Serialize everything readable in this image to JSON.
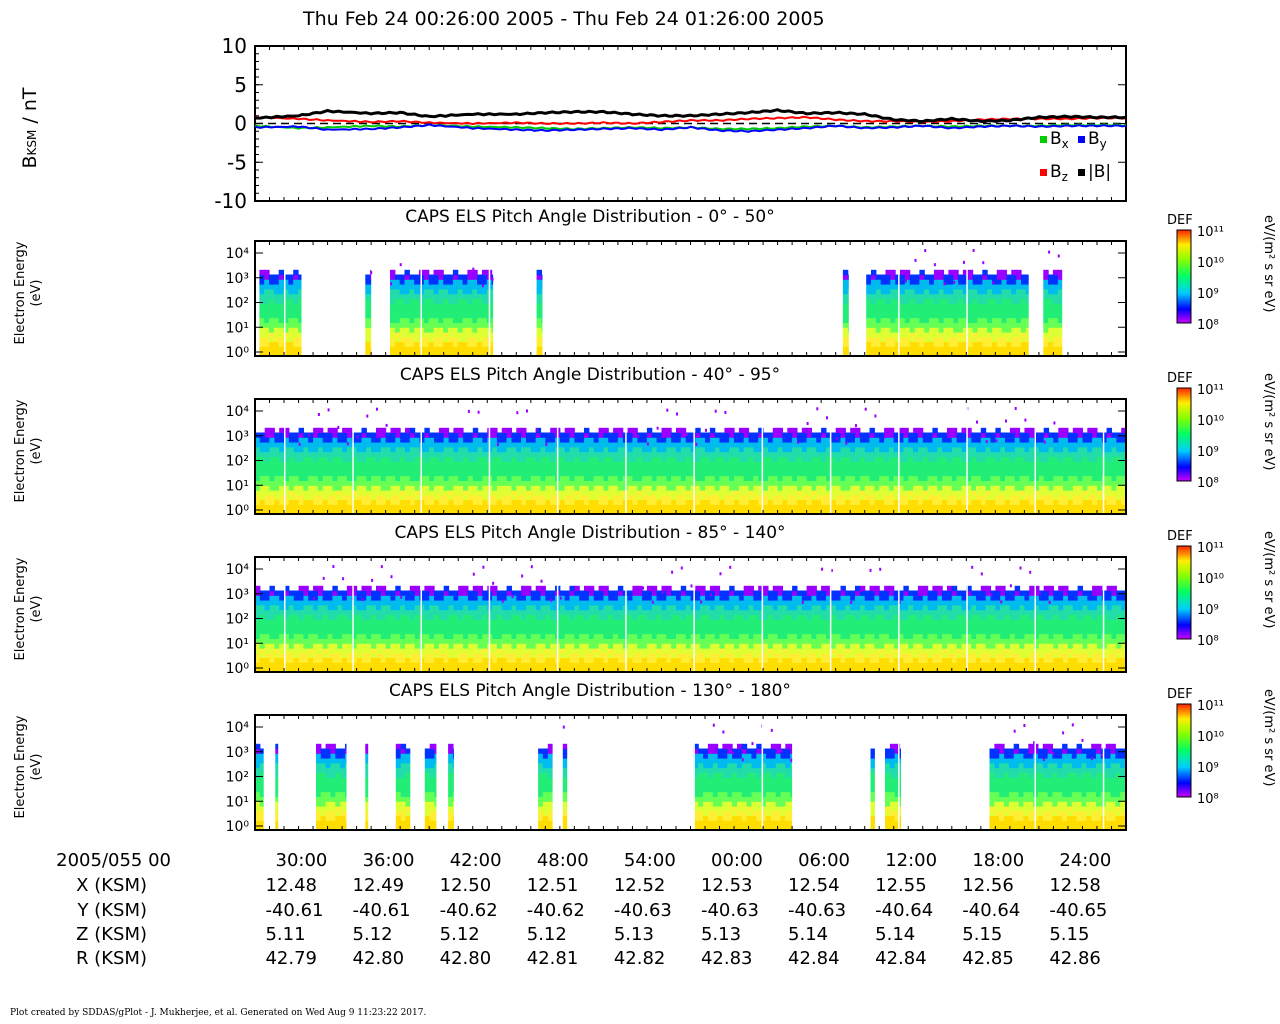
{
  "title": "Thu Feb 24 00:26:00 2005 - Thu Feb 24 01:26:00 2005",
  "footer": "Plot created by SDDAS/gPlot - J. Mukherjee, et al.  Generated on Wed Aug 9 11:23:22 2017.",
  "chart_data": [
    {
      "type": "line",
      "panel": "magnetometer",
      "ylabel": "B_KSM / nT",
      "ylim": [
        -10,
        10
      ],
      "yticks": [
        "10",
        "5",
        "0",
        "-5",
        "-10"
      ],
      "legend": [
        "Bx",
        "By",
        "Bz",
        "|B|"
      ],
      "legend_placement": "bottom-right",
      "colors": {
        "Bx": "#00cc00",
        "By": "#0000ff",
        "Bz": "#ff0000",
        "|B|": "#000000"
      },
      "x_minutes": [
        0,
        3,
        5,
        8,
        10,
        12,
        15,
        18,
        20,
        22,
        24,
        26,
        28,
        30,
        32,
        34,
        36,
        38,
        40,
        42,
        44,
        46,
        48,
        50,
        52,
        54,
        56,
        58,
        60
      ],
      "series": [
        {
          "name": "Bx",
          "values": [
            -0.3,
            -0.6,
            -0.5,
            -0.3,
            -0.4,
            -0.2,
            -0.4,
            -0.5,
            -0.6,
            -0.7,
            -0.6,
            -0.5,
            -0.6,
            -0.5,
            -0.7,
            -0.7,
            -0.6,
            -0.4,
            -0.3,
            -0.5,
            -0.4,
            -0.3,
            -0.4,
            -0.3,
            -0.3,
            -0.3,
            -0.2,
            -0.2,
            -0.2
          ]
        },
        {
          "name": "By",
          "values": [
            -0.5,
            -0.4,
            -0.8,
            -0.7,
            -0.5,
            -0.2,
            -0.6,
            -0.8,
            -0.9,
            -0.8,
            -0.7,
            -0.6,
            -0.8,
            -0.5,
            -0.9,
            -1.0,
            -0.8,
            -0.6,
            -0.3,
            -0.6,
            -0.5,
            -0.3,
            -0.6,
            -0.4,
            -0.3,
            -0.4,
            -0.3,
            -0.3,
            -0.3
          ]
        },
        {
          "name": "Bz",
          "values": [
            0.8,
            0.6,
            0.4,
            0.2,
            0.3,
            0.1,
            0.0,
            0.1,
            0.0,
            0.0,
            0.1,
            0.0,
            0.2,
            0.4,
            0.4,
            0.6,
            0.7,
            0.8,
            0.5,
            0.3,
            0.3,
            0.2,
            0.3,
            0.5,
            0.6,
            0.6,
            0.6,
            0.7,
            0.7
          ]
        },
        {
          "name": "|B|",
          "values": [
            0.7,
            1.0,
            1.6,
            1.3,
            1.4,
            0.9,
            1.2,
            1.2,
            1.4,
            1.5,
            1.5,
            1.2,
            1.0,
            1.0,
            1.2,
            1.4,
            1.7,
            1.3,
            1.4,
            1.2,
            0.5,
            0.3,
            0.6,
            0.3,
            0.4,
            0.8,
            0.9,
            0.8,
            0.8
          ]
        }
      ]
    },
    {
      "type": "heatmap",
      "title": "CAPS ELS Pitch Angle Distribution - 0° - 50°",
      "ylabel": "Electron Energy (eV)",
      "yticks": [
        "10⁰",
        "10¹",
        "10²",
        "10³",
        "10⁴"
      ],
      "colorbar": {
        "label": "DEF",
        "unit": "eV/(m² s sr eV)",
        "ticks": [
          "10¹¹",
          "10¹⁰",
          "10⁹",
          "10⁸"
        ]
      },
      "active_minutes": [
        [
          0.3,
          3.2
        ],
        [
          7.6,
          8.0
        ],
        [
          9.3,
          16.4
        ],
        [
          19.4,
          19.8
        ],
        [
          40.5,
          40.9
        ],
        [
          42.1,
          53.3
        ],
        [
          54.3,
          55.6
        ]
      ]
    },
    {
      "type": "heatmap",
      "title": "CAPS ELS Pitch Angle Distribution - 40° - 95°",
      "ylabel": "Electron Energy (eV)",
      "yticks": [
        "10⁰",
        "10¹",
        "10²",
        "10³",
        "10⁴"
      ],
      "colorbar": {
        "label": "DEF",
        "unit": "eV/(m² s sr eV)",
        "ticks": [
          "10¹¹",
          "10¹⁰",
          "10⁹",
          "10⁸"
        ]
      },
      "active_minutes": [
        [
          0,
          60
        ]
      ]
    },
    {
      "type": "heatmap",
      "title": "CAPS ELS Pitch Angle Distribution - 85° - 140°",
      "ylabel": "Electron Energy (eV)",
      "yticks": [
        "10⁰",
        "10¹",
        "10²",
        "10³",
        "10⁴"
      ],
      "colorbar": {
        "label": "DEF",
        "unit": "eV/(m² s sr eV)",
        "ticks": [
          "10¹¹",
          "10¹⁰",
          "10⁹",
          "10⁸"
        ]
      },
      "active_minutes": [
        [
          0,
          60
        ]
      ]
    },
    {
      "type": "heatmap",
      "title": "CAPS ELS Pitch Angle Distribution - 130° - 180°",
      "ylabel": "Electron Energy (eV)",
      "yticks": [
        "10⁰",
        "10¹",
        "10²",
        "10³",
        "10⁴"
      ],
      "colorbar": {
        "label": "DEF",
        "unit": "eV/(m² s sr eV)",
        "ticks": [
          "10¹¹",
          "10¹⁰",
          "10⁹",
          "10⁸"
        ]
      },
      "active_minutes": [
        [
          0,
          0.6
        ],
        [
          1.4,
          1.6
        ],
        [
          4.2,
          6.3
        ],
        [
          7.6,
          7.8
        ],
        [
          9.7,
          10.7
        ],
        [
          11.7,
          12.5
        ],
        [
          13.3,
          13.7
        ],
        [
          19.5,
          20.5
        ],
        [
          21.2,
          21.5
        ],
        [
          30.2,
          37.0
        ],
        [
          42.4,
          42.7
        ],
        [
          43.4,
          44.5
        ],
        [
          50.6,
          60
        ]
      ]
    }
  ],
  "ephemeris": {
    "row_labels": [
      "2005/055 00",
      "X (KSM)",
      "Y (KSM)",
      "Z (KSM)",
      "R (KSM)"
    ],
    "columns": [
      {
        "time": "30:00",
        "x": "12.48",
        "y": "-40.61",
        "z": "5.11",
        "r": "42.79"
      },
      {
        "time": "36:00",
        "x": "12.49",
        "y": "-40.61",
        "z": "5.12",
        "r": "42.80"
      },
      {
        "time": "42:00",
        "x": "12.50",
        "y": "-40.62",
        "z": "5.12",
        "r": "42.80"
      },
      {
        "time": "48:00",
        "x": "12.51",
        "y": "-40.62",
        "z": "5.12",
        "r": "42.81"
      },
      {
        "time": "54:00",
        "x": "12.52",
        "y": "-40.63",
        "z": "5.13",
        "r": "42.82"
      },
      {
        "time": "00:00",
        "x": "12.53",
        "y": "-40.63",
        "z": "5.13",
        "r": "42.83"
      },
      {
        "time": "06:00",
        "x": "12.54",
        "y": "-40.63",
        "z": "5.14",
        "r": "42.84"
      },
      {
        "time": "12:00",
        "x": "12.55",
        "y": "-40.64",
        "z": "5.14",
        "r": "42.84"
      },
      {
        "time": "18:00",
        "x": "12.56",
        "y": "-40.64",
        "z": "5.15",
        "r": "42.85"
      },
      {
        "time": "24:00",
        "x": "12.58",
        "y": "-40.65",
        "z": "5.15",
        "r": "42.86"
      }
    ]
  }
}
